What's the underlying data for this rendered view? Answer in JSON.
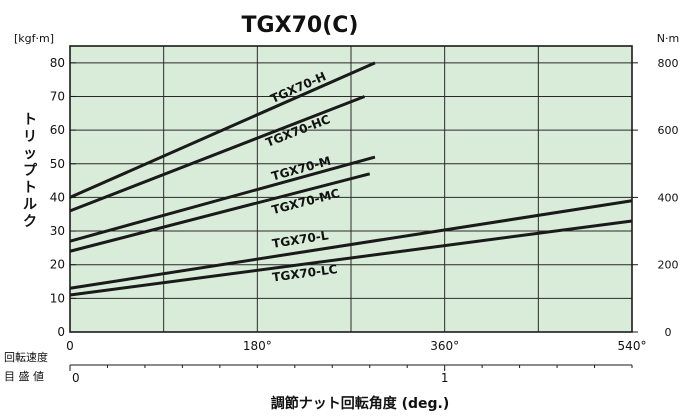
{
  "chart_data": {
    "type": "line",
    "title": "TGX70(C)",
    "left_unit": "kgf·m",
    "right_unit": "N·m",
    "ylabel": "トリップトルク",
    "xlabel": "調節ナット回転角度 (deg.)",
    "ylim": [
      0,
      85
    ],
    "xlim": [
      0,
      540
    ],
    "y_ticks": [
      0,
      10,
      20,
      30,
      40,
      50,
      60,
      70,
      80
    ],
    "right_ticks": [
      0,
      200,
      400,
      600,
      800
    ],
    "right_ticks_text": [
      "0",
      "200",
      "400",
      "600",
      "800"
    ],
    "x_ticks": [
      0,
      180,
      360,
      540
    ],
    "x_ticks_text": [
      "0",
      "180°",
      "360°",
      "540°"
    ],
    "grid_x": [
      0,
      90,
      180,
      270,
      360,
      450,
      540
    ],
    "grid_y": [
      10,
      20,
      30,
      40,
      50,
      60,
      70,
      80
    ],
    "speed_scale_label": "回転速度",
    "speed_scale_label2": "目 盛 値",
    "speed_ticks": [
      0,
      360
    ],
    "speed_ticks_text": [
      "0",
      "1"
    ],
    "grid": true,
    "background": "#d9ecd9",
    "line_color": "#1a1a1a",
    "series": [
      {
        "name": "TGX70-H",
        "x": [
          0,
          293
        ],
        "values": [
          40,
          80
        ],
        "label_x": 195,
        "label_y": 68
      },
      {
        "name": "TGX70-HC",
        "x": [
          0,
          283
        ],
        "values": [
          36,
          70
        ],
        "label_x": 190,
        "label_y": 55
      },
      {
        "name": "TGX70-M",
        "x": [
          0,
          293
        ],
        "values": [
          27,
          52
        ],
        "label_x": 195,
        "label_y": 45
      },
      {
        "name": "TGX70-MC",
        "x": [
          0,
          288
        ],
        "values": [
          24,
          47
        ],
        "label_x": 195,
        "label_y": 35
      },
      {
        "name": "TGX70-L",
        "x": [
          0,
          540
        ],
        "values": [
          13,
          39
        ],
        "label_x": 195,
        "label_y": 25
      },
      {
        "name": "TGX70-LC",
        "x": [
          0,
          540
        ],
        "values": [
          11,
          33
        ],
        "label_x": 195,
        "label_y": 15
      }
    ]
  }
}
